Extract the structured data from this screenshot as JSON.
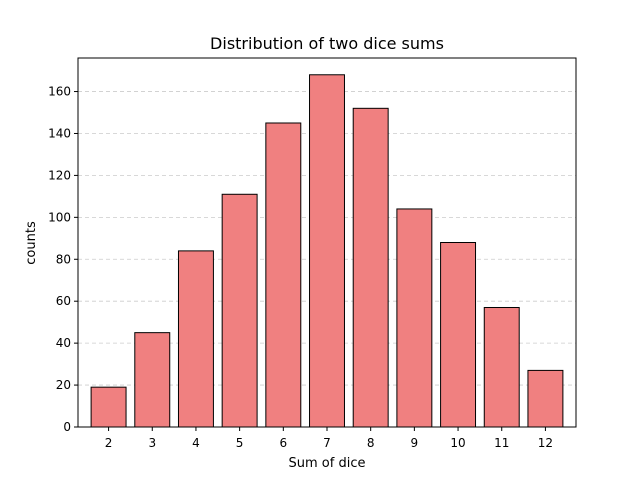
{
  "chart_data": {
    "type": "bar",
    "title": "Distribution of two dice sums",
    "xlabel": "Sum of dice",
    "ylabel": "counts",
    "categories": [
      "2",
      "3",
      "4",
      "5",
      "6",
      "7",
      "8",
      "9",
      "10",
      "11",
      "12"
    ],
    "values": [
      19,
      45,
      84,
      111,
      145,
      168,
      152,
      104,
      88,
      57,
      27
    ],
    "ylim": [
      0,
      176
    ],
    "yticks": [
      0,
      20,
      40,
      60,
      80,
      100,
      120,
      140,
      160
    ],
    "grid": "y-dashed",
    "bar_color": "#f08080",
    "bar_edge_color": "#000000",
    "grid_color": "#cccccc"
  }
}
